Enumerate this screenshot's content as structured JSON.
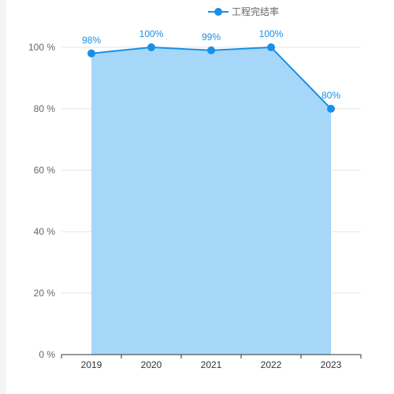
{
  "chart_data": {
    "type": "area",
    "categories": [
      "2019",
      "2020",
      "2021",
      "2022",
      "2023"
    ],
    "series": [
      {
        "name": "工程完结率",
        "values": [
          98,
          100,
          99,
          100,
          80
        ],
        "labels": [
          "98%",
          "100%",
          "99%",
          "100%",
          "80%"
        ]
      }
    ],
    "ylim": [
      0,
      100
    ],
    "yticks": [
      0,
      20,
      40,
      60,
      80,
      100
    ],
    "ytick_labels": [
      "0 %",
      "20 %",
      "40 %",
      "60 %",
      "80 %",
      "100 %"
    ],
    "grid": true,
    "legend_position": "top-right",
    "colors": {
      "line": "#1890e6",
      "area": "#a6d7f9",
      "grid": "#e6e6e6",
      "axis": "#333333"
    }
  }
}
